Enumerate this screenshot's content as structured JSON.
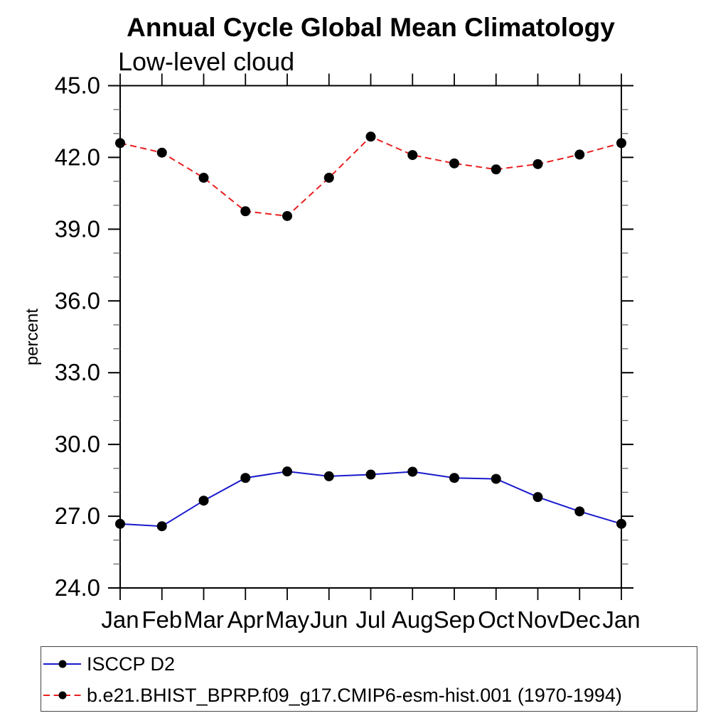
{
  "chart_data": {
    "type": "line",
    "title": "Annual Cycle Global Mean Climatology",
    "subtitle": "Low-level cloud",
    "ylabel": "percent",
    "xlabel": "",
    "x_categories": [
      "Jan",
      "Feb",
      "Mar",
      "Apr",
      "May",
      "Jun",
      "Jul",
      "Aug",
      "Sep",
      "Oct",
      "Nov",
      "Dec",
      "Jan"
    ],
    "ylim": [
      24.0,
      45.0
    ],
    "y_major_ticks": [
      24.0,
      27.0,
      30.0,
      33.0,
      36.0,
      39.0,
      42.0,
      45.0
    ],
    "y_tick_labels": [
      "24.0",
      "27.0",
      "30.0",
      "33.0",
      "36.0",
      "39.0",
      "42.0",
      "45.0"
    ],
    "y_minor_step": 1.0,
    "grid": false,
    "legend_position": "bottom-left",
    "frame_color": "#000000",
    "marker_color": "#000000",
    "series": [
      {
        "name": "ISCCP D2",
        "line_color": "#1a1acc",
        "line_style": "solid",
        "marker": "filled-circle",
        "values": [
          26.68,
          26.58,
          27.65,
          28.6,
          28.87,
          28.67,
          28.74,
          28.86,
          28.6,
          28.56,
          27.8,
          27.2,
          26.68
        ]
      },
      {
        "name": "b.e21.BHIST_BPRP.f09_g17.CMIP6-esm-hist.001 (1970-1994)",
        "line_color": "#e82020",
        "line_style": "dashed",
        "marker": "filled-circle",
        "values": [
          42.6,
          42.2,
          41.15,
          39.75,
          39.55,
          41.15,
          42.87,
          42.1,
          41.75,
          41.5,
          41.72,
          42.12,
          42.6
        ]
      }
    ]
  }
}
